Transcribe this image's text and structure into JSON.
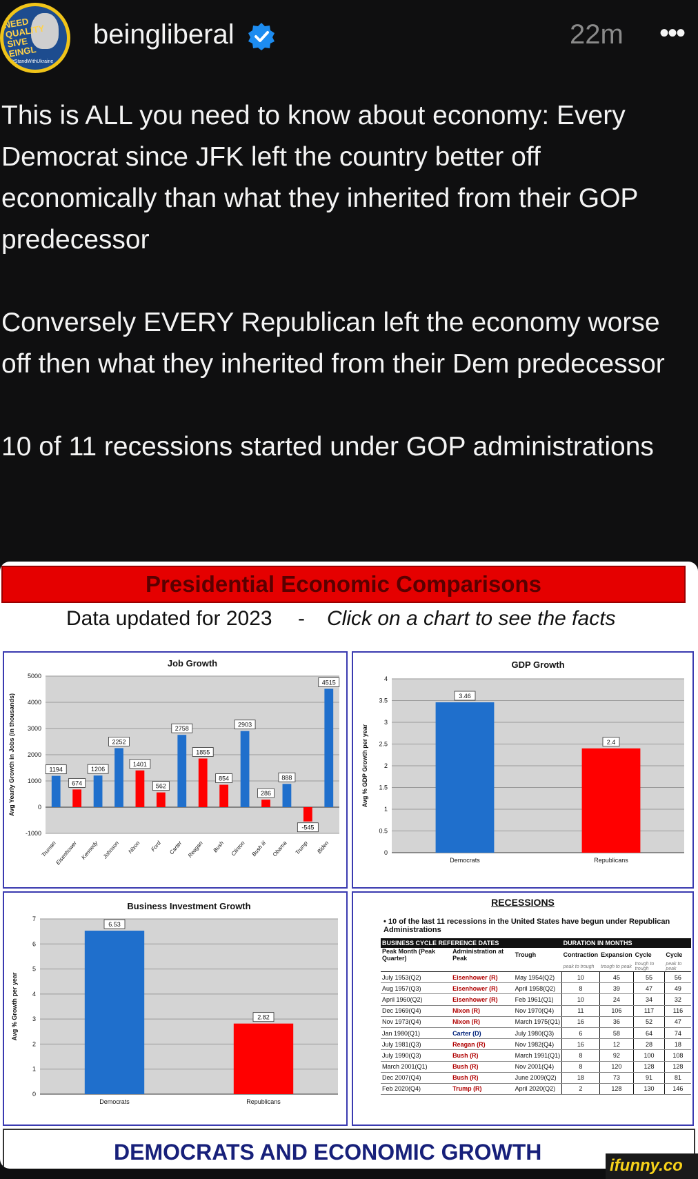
{
  "post": {
    "username": "beingliberal",
    "time": "22m",
    "more_label": "•••",
    "avatar_text": "NEED\nQUALITY\nSIVE\nEINGL",
    "avatar_tag": "#StandWithUkraine",
    "paragraphs": [
      "This is ALL you need to know about economy: Every Democrat since JFK left the country better off economically than what they inherited from their GOP predecessor",
      "Conversely EVERY Republican left the economy worse off then what they inherited from their Dem predecessor",
      "10 of 11 recessions started under GOP administrations"
    ]
  },
  "card": {
    "title": "Presidential Economic Comparisons",
    "sub_a": "Data updated for 2023",
    "sub_dash": "-",
    "sub_b": "Click on a chart to see the facts",
    "footer": "DEMOCRATS AND ECONOMIC GROWTH"
  },
  "colors": {
    "dem": "#1f6fcc",
    "gop": "#ff0000",
    "accent": "#e50000"
  },
  "chart_data": [
    {
      "type": "bar",
      "title": "Job Growth",
      "ylabel": "Avg Yearly Growth in Jobs (in thousands)",
      "ylim": [
        -1000,
        5000
      ],
      "yticks": [
        -1000,
        0,
        1000,
        2000,
        3000,
        4000,
        5000
      ],
      "categories": [
        "Truman",
        "Eisenhower",
        "Kennedy",
        "Johnson",
        "Nixon",
        "Ford",
        "Carter",
        "Reagan",
        "Bush",
        "Clinton",
        "Bush iii",
        "Obama",
        "Trump",
        "Biden"
      ],
      "values": [
        1194,
        674,
        1206,
        2252,
        1401,
        562,
        2758,
        1855,
        854,
        2903,
        286,
        888,
        -545,
        4515
      ],
      "party": [
        "D",
        "R",
        "D",
        "D",
        "R",
        "R",
        "D",
        "R",
        "R",
        "D",
        "R",
        "D",
        "R",
        "D"
      ]
    },
    {
      "type": "bar",
      "title": "GDP Growth",
      "ylabel": "Avg % GDP Growth per year",
      "ylim": [
        0,
        4
      ],
      "yticks": [
        0,
        0.5,
        1,
        1.5,
        2,
        2.5,
        3,
        3.5,
        4
      ],
      "categories": [
        "Democrats",
        "Republicans"
      ],
      "values": [
        3.46,
        2.4
      ]
    },
    {
      "type": "bar",
      "title": "Business Investment Growth",
      "ylabel": "Avg % Growth per year",
      "ylim": [
        0,
        7
      ],
      "yticks": [
        0,
        1,
        2,
        3,
        4,
        5,
        6,
        7
      ],
      "categories": [
        "Democrats",
        "Republicans"
      ],
      "values": [
        6.53,
        2.82
      ]
    },
    {
      "type": "table",
      "title": "RECESSIONS",
      "bullet": "• 10 of the last 11 recessions in the United States have begun under Republican Administrations",
      "group_headers": [
        "BUSINESS CYCLE REFERENCE DATES",
        "DURATION IN MONTHS"
      ],
      "columns": [
        "Peak Month (Peak Quarter)",
        "Administration at Peak",
        "Trough",
        "Contraction",
        "Expansion",
        "Cycle",
        "Cycle"
      ],
      "column_notes": [
        "",
        "",
        "",
        "peak to trough",
        "trough to peak",
        "trough to trough",
        "peak to peak"
      ],
      "rows": [
        [
          "July 1953(Q2)",
          "Eisenhower (R)",
          "May 1954(Q2)",
          "10",
          "45",
          "55",
          "56"
        ],
        [
          "Aug 1957(Q3)",
          "Eisenhower (R)",
          "April 1958(Q2)",
          "8",
          "39",
          "47",
          "49"
        ],
        [
          "April 1960(Q2)",
          "Eisenhower (R)",
          "Feb 1961(Q1)",
          "10",
          "24",
          "34",
          "32"
        ],
        [
          "Dec 1969(Q4)",
          "Nixon (R)",
          "Nov 1970(Q4)",
          "11",
          "106",
          "117",
          "116"
        ],
        [
          "Nov 1973(Q4)",
          "Nixon (R)",
          "March 1975(Q1)",
          "16",
          "36",
          "52",
          "47"
        ],
        [
          "Jan 1980(Q1)",
          "Carter (D)",
          "July 1980(Q3)",
          "6",
          "58",
          "64",
          "74"
        ],
        [
          "July 1981(Q3)",
          "Reagan (R)",
          "Nov 1982(Q4)",
          "16",
          "12",
          "28",
          "18"
        ],
        [
          "July 1990(Q3)",
          "Bush (R)",
          "March 1991(Q1)",
          "8",
          "92",
          "100",
          "108"
        ],
        [
          "March 2001(Q1)",
          "Bush (R)",
          "Nov 2001(Q4)",
          "8",
          "120",
          "128",
          "128"
        ],
        [
          "Dec 2007(Q4)",
          "Bush (R)",
          "June 2009(Q2)",
          "18",
          "73",
          "91",
          "81"
        ],
        [
          "Feb 2020(Q4)",
          "Trump (R)",
          "April 2020(Q2)",
          "2",
          "128",
          "130",
          "146"
        ]
      ]
    }
  ],
  "watermark": "ifunny.co"
}
